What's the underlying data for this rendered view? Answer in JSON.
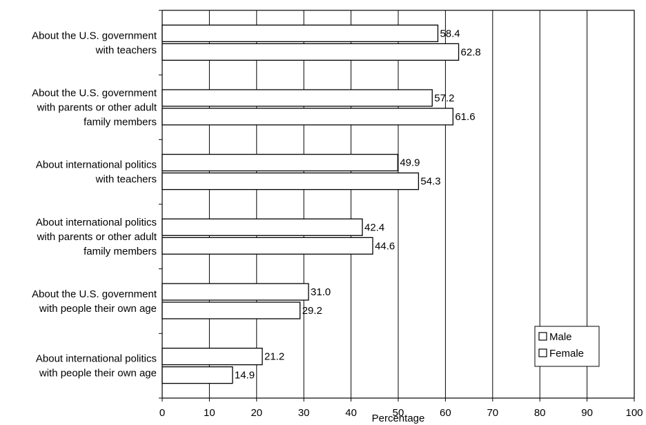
{
  "chart_data": {
    "type": "bar",
    "orientation": "horizontal",
    "categories": [
      [
        "About the U.S. government",
        "with teachers"
      ],
      [
        "About the U.S. government",
        "with parents or other adult",
        "family members"
      ],
      [
        "About international politics",
        "with teachers"
      ],
      [
        "About international politics",
        "with parents or other adult",
        "family members"
      ],
      [
        "About the U.S. government",
        "with people their own age"
      ],
      [
        "About international politics",
        "with people their own age"
      ]
    ],
    "series": [
      {
        "name": "Male",
        "values": [
          58.4,
          57.2,
          49.9,
          42.4,
          31.0,
          21.2
        ],
        "labels": [
          "58.4",
          "57.2",
          "49.9",
          "42.4",
          "31.0",
          "21.2"
        ]
      },
      {
        "name": "Female",
        "values": [
          62.8,
          61.6,
          54.3,
          44.6,
          29.2,
          14.9
        ],
        "labels": [
          "62.8",
          "61.6",
          "54.3",
          "44.6",
          "29.2",
          "14.9"
        ]
      }
    ],
    "xlabel": "Percentage",
    "xlim": [
      0,
      100
    ],
    "xticks": [
      0,
      10,
      20,
      30,
      40,
      50,
      60,
      70,
      80,
      90,
      100
    ],
    "grid": "vertical",
    "legend": "bottom-right",
    "bar_fill": "#ffffff",
    "line_color": "#000000"
  }
}
